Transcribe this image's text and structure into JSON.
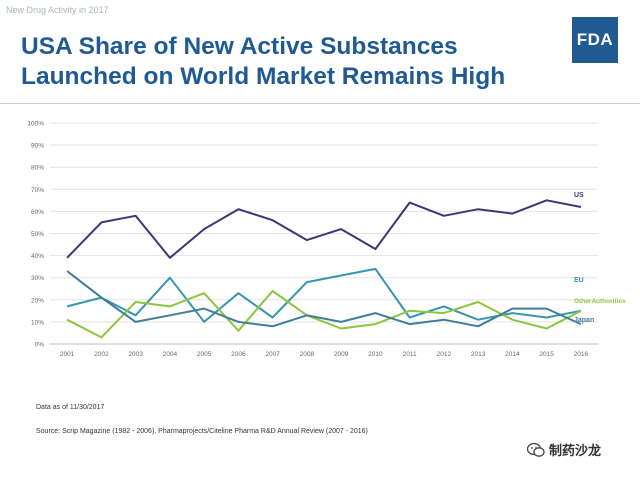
{
  "header": {
    "tag": "New Drug Activity in 2017",
    "title": "USA Share of New Active Substances Launched on World Market Remains High",
    "logo_text": "FDA"
  },
  "colors": {
    "brand": "#1f5a93",
    "us": "#433378",
    "eu": "#3795b0",
    "other": "#8cc63f",
    "japan": "#3f7e9a"
  },
  "chart_data": {
    "type": "line",
    "x": [
      "2001",
      "2002",
      "2003",
      "2004",
      "2005",
      "2006",
      "2007",
      "2008",
      "2009",
      "2010",
      "2011",
      "2012",
      "2013",
      "2014",
      "2015",
      "2016"
    ],
    "y_ticks": [
      "0%",
      "10%",
      "20%",
      "30%",
      "40%",
      "50%",
      "60%",
      "70%",
      "80%",
      "90%",
      "100%"
    ],
    "ylim": [
      0,
      100
    ],
    "grid": true,
    "legend_placement": "right-end-labels",
    "series": [
      {
        "name": "US",
        "color": "#433378",
        "values": [
          39,
          55,
          58,
          39,
          52,
          61,
          56,
          47,
          52,
          43,
          64,
          58,
          61,
          59,
          65,
          62
        ]
      },
      {
        "name": "EU",
        "color": "#3795b0",
        "values": [
          17,
          21,
          13,
          30,
          10,
          23,
          12,
          28,
          31,
          34,
          12,
          17,
          11,
          14,
          12,
          15
        ]
      },
      {
        "name": "Other Authorities",
        "color": "#8cc63f",
        "values": [
          11,
          3,
          19,
          17,
          23,
          6,
          24,
          13,
          7,
          9,
          15,
          14,
          19,
          11,
          7,
          15
        ]
      },
      {
        "name": "Japan",
        "color": "#3f7e9a",
        "values": [
          33,
          21,
          10,
          13,
          16,
          10,
          8,
          13,
          10,
          14,
          9,
          11,
          8,
          16,
          16,
          9
        ]
      }
    ]
  },
  "notes": {
    "as_of": "Data as of  11/30/2017",
    "source": "Source: Scrip Magazine (1982 - 2006), Pharmaprojects/Citeline Pharma R&D Annual Review (2007 - 2016)"
  },
  "watermark": {
    "text": "制药沙龙",
    "icon": "wechat-icon"
  }
}
